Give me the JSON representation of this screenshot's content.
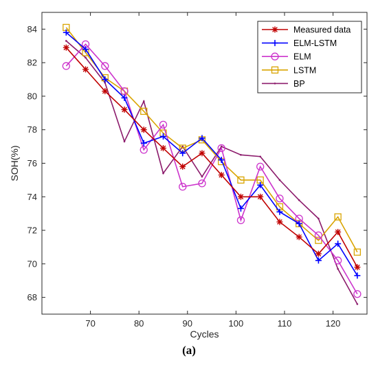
{
  "caption": "(a)",
  "chart_data": {
    "type": "line",
    "xlabel": "Cycles",
    "ylabel": "SOH(%)",
    "xlim": [
      60,
      127
    ],
    "ylim": [
      67,
      85
    ],
    "x_ticks": [
      70,
      80,
      90,
      100,
      110,
      120
    ],
    "y_ticks": [
      68,
      70,
      72,
      74,
      76,
      78,
      80,
      82,
      84
    ],
    "grid": false,
    "legend_position": "top-right",
    "series": [
      {
        "name": "Measured data",
        "color": "#c00000",
        "marker": "asterisk",
        "x": [
          65,
          69,
          73,
          77,
          81,
          85,
          89,
          93,
          97,
          101,
          105,
          109,
          113,
          117,
          121,
          125
        ],
        "y": [
          82.9,
          81.6,
          80.3,
          79.2,
          78.0,
          76.9,
          75.8,
          76.6,
          75.3,
          74.0,
          74.0,
          72.5,
          71.6,
          70.6,
          71.9,
          69.8
        ]
      },
      {
        "name": "ELM-LSTM",
        "color": "#0000ff",
        "marker": "plus",
        "x": [
          65,
          69,
          73,
          77,
          81,
          85,
          89,
          93,
          97,
          101,
          105,
          109,
          113,
          117,
          121,
          125
        ],
        "y": [
          83.8,
          82.8,
          81.0,
          79.9,
          77.2,
          77.6,
          76.6,
          77.5,
          76.2,
          73.3,
          74.7,
          73.1,
          72.4,
          70.2,
          71.2,
          69.3
        ]
      },
      {
        "name": "ELM",
        "color": "#cc33cc",
        "marker": "circle",
        "x": [
          65,
          69,
          73,
          77,
          81,
          85,
          89,
          93,
          97,
          101,
          105,
          109,
          113,
          117,
          121,
          125
        ],
        "y": [
          81.8,
          83.1,
          81.8,
          80.3,
          76.8,
          78.3,
          74.6,
          74.8,
          76.9,
          72.6,
          75.8,
          73.9,
          72.7,
          71.7,
          70.2,
          68.2
        ]
      },
      {
        "name": "LSTM",
        "color": "#d9a400",
        "marker": "square",
        "x": [
          65,
          69,
          73,
          77,
          81,
          85,
          89,
          93,
          97,
          101,
          105,
          109,
          113,
          117,
          121,
          125
        ],
        "y": [
          84.1,
          82.6,
          81.1,
          80.3,
          79.1,
          77.8,
          76.9,
          77.4,
          76.1,
          75.0,
          75.0,
          73.4,
          72.4,
          71.4,
          72.8,
          70.7
        ]
      },
      {
        "name": "BP",
        "color": "#8b1a6b",
        "marker": "dot",
        "x": [
          65,
          69,
          73,
          77,
          81,
          85,
          89,
          93,
          97,
          101,
          105,
          109,
          113,
          117,
          121,
          125
        ],
        "y": [
          83.3,
          82.3,
          80.8,
          77.3,
          79.7,
          75.4,
          77.0,
          75.2,
          77.0,
          76.5,
          76.4,
          75.0,
          73.8,
          72.7,
          69.7,
          67.6
        ]
      }
    ]
  }
}
